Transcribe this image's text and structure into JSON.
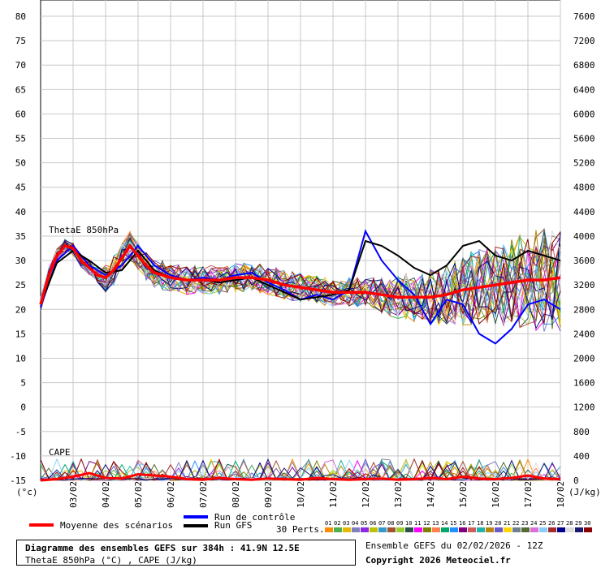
{
  "chart_data": {
    "type": "line",
    "title": "Diagramme des ensembles GEFS sur 384h : 41.9N 12.5E",
    "subtitle": "ThetaE 850hPa (°C) , CAPE (J/kg)",
    "ensemble_info": "Ensemble GEFS du 02/02/2026 - 12Z",
    "copyright": "Copyright 2026 Meteociel.fr",
    "panel_labels": {
      "thetae": "ThetaE 850hPa",
      "cape": "CAPE"
    },
    "left_axis": {
      "unit": "(°c)",
      "ticks": [
        "80",
        "75",
        "70",
        "65",
        "60",
        "55",
        "50",
        "45",
        "40",
        "35",
        "30",
        "25",
        "20",
        "15",
        "10",
        "5",
        "0",
        "-5",
        "-10",
        "-15"
      ],
      "range": [
        -15,
        80
      ]
    },
    "right_axis": {
      "unit": "(J/kg)",
      "ticks": [
        "7600",
        "7200",
        "6800",
        "6400",
        "6000",
        "5600",
        "5200",
        "4800",
        "4400",
        "4000",
        "3600",
        "3200",
        "2800",
        "2400",
        "2000",
        "1600",
        "1200",
        "800",
        "400",
        "0"
      ],
      "range": [
        0,
        7600
      ]
    },
    "x_axis": {
      "ticks": [
        "03/02",
        "04/02",
        "05/02",
        "06/02",
        "07/02",
        "08/02",
        "09/02",
        "10/02",
        "11/02",
        "12/02",
        "13/02",
        "14/02",
        "15/02",
        "16/02",
        "17/02",
        "18/02"
      ],
      "range_days": [
        0,
        16
      ]
    },
    "legend": {
      "mean": "Moyenne des scénarios",
      "control": "Run de contrôle",
      "gfs": "Run GFS",
      "perts": "30 Perts.",
      "perts_labels": [
        "01",
        "02",
        "03",
        "04",
        "05",
        "06",
        "07",
        "08",
        "09",
        "10",
        "11",
        "12",
        "13",
        "14",
        "15",
        "16",
        "17",
        "18",
        "19",
        "20",
        "21",
        "22",
        "23",
        "24",
        "25",
        "26",
        "27",
        "28",
        "29",
        "30"
      ]
    },
    "colors": {
      "mean": "#ff0000",
      "control": "#0000ff",
      "gfs": "#000000",
      "perts": [
        "#ff8c00",
        "#4caf50",
        "#e6b800",
        "#8080c0",
        "#8a2be2",
        "#c0c000",
        "#3399cc",
        "#a0522d",
        "#9acd32",
        "#2f4f4f",
        "#ff00ff",
        "#808000",
        "#ff7f50",
        "#00a86b",
        "#1e90ff",
        "#800080",
        "#cd5c5c",
        "#20b2aa",
        "#b8860b",
        "#6a5acd",
        "#ffd700",
        "#708090",
        "#556b2f",
        "#da70d6",
        "#87cefa",
        "#a52a2a",
        "#00008b",
        "#dcdcdc",
        "#191970",
        "#8b0000"
      ]
    },
    "series": [
      {
        "name": "Moyenne des scénarios",
        "x": [
          0,
          0.25,
          0.5,
          0.75,
          1,
          1.25,
          1.5,
          1.75,
          2,
          2.25,
          2.5,
          2.75,
          3,
          3.25,
          3.5,
          3.75,
          4,
          4.5,
          5,
          5.5,
          6,
          6.5,
          7,
          7.5,
          8,
          8.5,
          9,
          9.5,
          10,
          10.5,
          11,
          11.5,
          12,
          12.5,
          13,
          13.5,
          14,
          14.5,
          15,
          15.5,
          16
        ],
        "y": [
          21,
          27,
          31,
          33,
          32.5,
          30,
          28.5,
          27,
          26.5,
          28,
          30.5,
          33,
          31,
          29,
          27.5,
          27,
          26.5,
          26,
          26,
          26,
          26.5,
          26.5,
          26,
          25,
          24.5,
          24,
          23.5,
          23.5,
          23.5,
          23,
          22.5,
          22.5,
          22.5,
          23,
          24,
          24.5,
          25,
          25.5,
          26,
          26,
          26.5
        ]
      },
      {
        "name": "Run de contrôle",
        "x": [
          0,
          0.5,
          1,
          1.5,
          2,
          2.5,
          3,
          3.5,
          4,
          4.5,
          5,
          5.5,
          6,
          6.5,
          7,
          7.5,
          8,
          8.5,
          9,
          9.5,
          10,
          10.5,
          11,
          11.5,
          12,
          12.5,
          13,
          13.5,
          14,
          14.5,
          15,
          15.5,
          16
        ],
        "y": [
          20.5,
          30,
          33,
          29,
          27,
          29,
          33,
          29,
          27,
          26,
          26.5,
          26,
          27,
          27.5,
          25.5,
          24,
          22,
          23,
          22,
          24,
          36,
          30,
          26,
          23,
          17,
          22,
          21,
          15,
          13,
          16,
          21,
          22,
          20
        ]
      },
      {
        "name": "Run GFS",
        "x": [
          0,
          0.5,
          1,
          1.5,
          2,
          2.5,
          3,
          3.5,
          4,
          4.5,
          5,
          5.5,
          6,
          6.5,
          7,
          7.5,
          8,
          8.5,
          9,
          9.5,
          10,
          10.5,
          11,
          11.5,
          12,
          12.5,
          13,
          13.5,
          14,
          14.5,
          15,
          15.5,
          16
        ],
        "y": [
          21,
          29.5,
          32,
          30,
          27.5,
          28,
          32,
          28,
          26.5,
          26,
          26,
          25.5,
          26,
          26.5,
          25,
          23.5,
          22,
          22.5,
          23,
          24,
          34,
          33,
          31,
          28.5,
          27,
          29,
          33,
          34,
          31,
          30,
          32,
          31,
          30
        ]
      }
    ],
    "cape_mean": {
      "x": [
        0,
        0.5,
        1,
        1.5,
        2,
        2.5,
        3,
        3.5,
        4,
        4.5,
        5,
        5.5,
        6,
        6.5,
        7,
        7.5,
        8,
        8.5,
        9,
        9.5,
        10,
        10.5,
        11,
        11.5,
        12,
        12.5,
        13,
        13.5,
        14,
        14.5,
        15,
        15.5,
        16
      ],
      "y": [
        0,
        20,
        60,
        120,
        40,
        30,
        100,
        80,
        60,
        20,
        10,
        40,
        20,
        10,
        30,
        20,
        10,
        40,
        20,
        10,
        20,
        30,
        10,
        20,
        40,
        20,
        60,
        30,
        20,
        40,
        80,
        30,
        20
      ]
    },
    "grid": true
  }
}
